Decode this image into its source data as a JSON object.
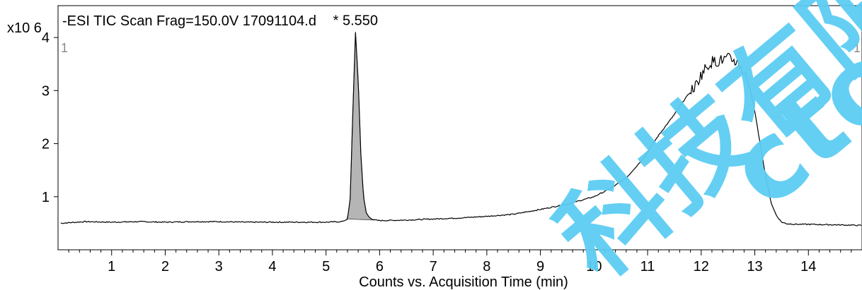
{
  "chart_data": {
    "type": "line",
    "title": "-ESI TIC Scan Frag=150.0V 17091104.d",
    "xlabel": "Counts vs. Acquisition Time (min)",
    "ylabel": "x10 6",
    "xlim": [
      0,
      15
    ],
    "ylim": [
      0,
      4.6
    ],
    "x_ticks": [
      "1",
      "2",
      "3",
      "4",
      "5",
      "6",
      "7",
      "8",
      "9",
      "10",
      "11",
      "12",
      "13",
      "14"
    ],
    "y_ticks": [
      "1",
      "2",
      "3",
      "4"
    ],
    "corner_labels": {
      "left": "1",
      "right": "1"
    },
    "series": [
      {
        "x": [
          0.05,
          0.5,
          1.0,
          1.5,
          2.0,
          2.5,
          3.0,
          3.5,
          4.0,
          4.5,
          5.0,
          5.3,
          5.4,
          5.45,
          5.5,
          5.55,
          5.6,
          5.65,
          5.7,
          5.75,
          5.8,
          5.85,
          5.9,
          6.0,
          6.5,
          7.0,
          7.5,
          8.0,
          8.5,
          9.0,
          9.5,
          10.0,
          10.3,
          10.6,
          10.9,
          11.2,
          11.5,
          11.7,
          11.9,
          12.0,
          12.1,
          12.2,
          12.3,
          12.4,
          12.5,
          12.6,
          12.7,
          12.8,
          12.9,
          13.0,
          13.1,
          13.2,
          13.3,
          13.4,
          13.5,
          13.6,
          13.8,
          14.0,
          14.5,
          15.0
        ],
        "y": [
          0.5,
          0.53,
          0.52,
          0.53,
          0.52,
          0.53,
          0.53,
          0.52,
          0.52,
          0.52,
          0.52,
          0.53,
          0.58,
          0.95,
          2.6,
          4.1,
          3.2,
          1.8,
          1.0,
          0.7,
          0.62,
          0.58,
          0.56,
          0.55,
          0.56,
          0.58,
          0.6,
          0.63,
          0.67,
          0.76,
          0.86,
          1.0,
          1.15,
          1.35,
          1.7,
          2.15,
          2.55,
          2.85,
          3.1,
          3.3,
          3.45,
          3.55,
          3.55,
          3.58,
          3.6,
          3.58,
          3.5,
          3.35,
          3.1,
          2.6,
          2.0,
          1.4,
          0.9,
          0.65,
          0.52,
          0.49,
          0.48,
          0.48,
          0.47,
          0.46
        ]
      }
    ],
    "peak": {
      "label": "* 5.550",
      "x": 5.55,
      "y": 4.1,
      "fill_from": 5.4,
      "fill_to": 5.9
    }
  },
  "watermark": {
    "text_cn": "科技有限",
    "text_en": "ctory"
  }
}
